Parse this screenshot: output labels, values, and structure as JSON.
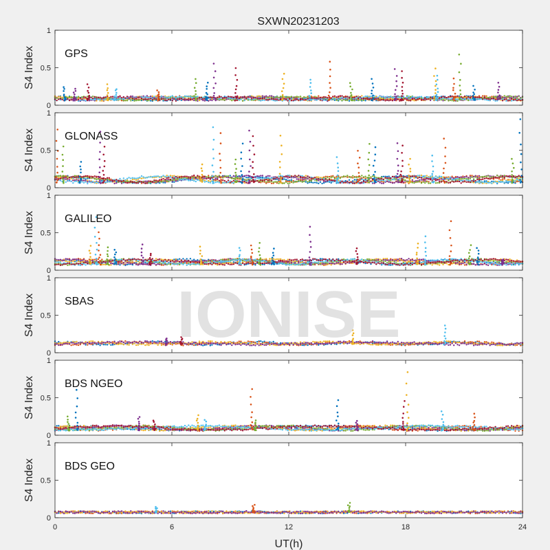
{
  "figure": {
    "title": "SXWN20231203",
    "xlabel": "UT(h)",
    "watermark": "IONISE"
  },
  "colors": [
    "#0072BD",
    "#D95319",
    "#EDB120",
    "#7E2F8E",
    "#77AC30",
    "#4DBEEE",
    "#A2142F"
  ],
  "chart_data": [
    {
      "type": "scatter",
      "panel_label": "GPS",
      "ylabel": "S4 Index",
      "xlim": [
        0,
        24
      ],
      "ylim": [
        0,
        1
      ],
      "xticks": [
        0,
        6,
        12,
        18,
        24
      ],
      "yticks": [
        0,
        0.5,
        1
      ],
      "baseline": 0.07,
      "bumps": 0.04,
      "nsat": 7,
      "seed": 11,
      "spikes": [
        [
          0.5,
          0.25
        ],
        [
          1.0,
          0.22
        ],
        [
          1.7,
          0.28
        ],
        [
          2.7,
          0.27
        ],
        [
          3.1,
          0.22
        ],
        [
          5.3,
          0.2
        ],
        [
          7.2,
          0.35
        ],
        [
          7.8,
          0.3
        ],
        [
          8.2,
          0.56
        ],
        [
          9.3,
          0.5
        ],
        [
          11.7,
          0.42
        ],
        [
          13.1,
          0.35
        ],
        [
          14.1,
          0.58
        ],
        [
          15.2,
          0.3
        ],
        [
          16.3,
          0.35
        ],
        [
          17.5,
          0.48
        ],
        [
          17.8,
          0.45
        ],
        [
          19.5,
          0.48
        ],
        [
          19.6,
          0.4
        ],
        [
          20.5,
          0.35
        ],
        [
          20.8,
          0.68
        ],
        [
          21.5,
          0.25
        ],
        [
          22.8,
          0.3
        ]
      ]
    },
    {
      "type": "scatter",
      "panel_label": "GLONASS",
      "ylabel": "S4 Index",
      "xlim": [
        0,
        24
      ],
      "ylim": [
        0,
        1
      ],
      "xticks": [
        0,
        6,
        12,
        18,
        24
      ],
      "yticks": [
        0,
        0.5,
        1
      ],
      "baseline": 0.07,
      "bumps": 0.08,
      "nsat": 7,
      "seed": 23,
      "spikes": [
        [
          0.1,
          0.78
        ],
        [
          0.4,
          0.55
        ],
        [
          1.3,
          0.35
        ],
        [
          2.3,
          0.75
        ],
        [
          2.5,
          0.55
        ],
        [
          7.5,
          0.32
        ],
        [
          8.1,
          0.8
        ],
        [
          8.5,
          0.72
        ],
        [
          9.3,
          0.38
        ],
        [
          9.6,
          0.58
        ],
        [
          10.0,
          0.76
        ],
        [
          10.2,
          0.68
        ],
        [
          11.6,
          0.7
        ],
        [
          14.5,
          0.4
        ],
        [
          15.6,
          0.5
        ],
        [
          16.1,
          0.58
        ],
        [
          16.4,
          0.55
        ],
        [
          17.6,
          0.6
        ],
        [
          17.8,
          0.56
        ],
        [
          18.2,
          0.38
        ],
        [
          19.4,
          0.42
        ],
        [
          20.0,
          0.66
        ],
        [
          23.5,
          0.38
        ],
        [
          23.9,
          0.92
        ]
      ]
    },
    {
      "type": "scatter",
      "panel_label": "GALILEO",
      "ylabel": "S4 Index",
      "xlim": [
        0,
        24
      ],
      "ylim": [
        0,
        1
      ],
      "xticks": [
        0,
        6,
        12,
        18,
        24
      ],
      "yticks": [
        0,
        0.5,
        1
      ],
      "baseline": 0.08,
      "bumps": 0.06,
      "nsat": 7,
      "seed": 37,
      "spikes": [
        [
          1.8,
          0.32
        ],
        [
          2.1,
          0.7
        ],
        [
          2.3,
          0.5
        ],
        [
          2.7,
          0.3
        ],
        [
          3.1,
          0.28
        ],
        [
          4.5,
          0.35
        ],
        [
          4.9,
          0.22
        ],
        [
          7.5,
          0.32
        ],
        [
          9.5,
          0.3
        ],
        [
          10.1,
          0.33
        ],
        [
          10.5,
          0.36
        ],
        [
          11.2,
          0.28
        ],
        [
          13.1,
          0.58
        ],
        [
          15.5,
          0.3
        ],
        [
          18.6,
          0.35
        ],
        [
          19.0,
          0.45
        ],
        [
          20.3,
          0.66
        ],
        [
          21.3,
          0.33
        ],
        [
          21.7,
          0.3
        ],
        [
          23.0,
          0.15
        ]
      ]
    },
    {
      "type": "scatter",
      "panel_label": "SBAS",
      "ylabel": "S4 Index",
      "xlim": [
        0,
        24
      ],
      "ylim": [
        0,
        1
      ],
      "xticks": [
        0,
        6,
        12,
        18,
        24
      ],
      "yticks": [
        0,
        0.5,
        1
      ],
      "baseline": 0.11,
      "bumps": 0.03,
      "nsat": 4,
      "seed": 41,
      "spikes": [
        [
          5.7,
          0.2
        ],
        [
          6.5,
          0.2
        ],
        [
          15.3,
          0.3
        ],
        [
          20.0,
          0.37
        ]
      ]
    },
    {
      "type": "scatter",
      "panel_label": "BDS NGEO",
      "ylabel": "S4 Index",
      "xlim": [
        0,
        24
      ],
      "ylim": [
        0,
        1
      ],
      "xticks": [
        0,
        6,
        12,
        18,
        24
      ],
      "yticks": [
        0,
        0.5,
        1
      ],
      "baseline": 0.07,
      "bumps": 0.05,
      "nsat": 7,
      "seed": 53,
      "spikes": [
        [
          0.7,
          0.25
        ],
        [
          1.1,
          0.6
        ],
        [
          4.3,
          0.25
        ],
        [
          5.1,
          0.2
        ],
        [
          7.3,
          0.27
        ],
        [
          7.7,
          0.2
        ],
        [
          10.1,
          0.62
        ],
        [
          10.3,
          0.2
        ],
        [
          14.5,
          0.47
        ],
        [
          15.5,
          0.2
        ],
        [
          17.9,
          0.45
        ],
        [
          18.1,
          0.85
        ],
        [
          19.9,
          0.32
        ],
        [
          21.5,
          0.28
        ]
      ]
    },
    {
      "type": "scatter",
      "panel_label": "BDS GEO",
      "ylabel": "S4 Index",
      "xlim": [
        0,
        24
      ],
      "ylim": [
        0,
        1
      ],
      "xticks": [
        0,
        6,
        12,
        18,
        24
      ],
      "yticks": [
        0,
        0.5,
        1
      ],
      "baseline": 0.07,
      "bumps": 0.005,
      "nsat": 4,
      "seed": 67,
      "spikes": [
        [
          5.2,
          0.15
        ],
        [
          10.2,
          0.18
        ],
        [
          15.1,
          0.2
        ]
      ]
    }
  ]
}
